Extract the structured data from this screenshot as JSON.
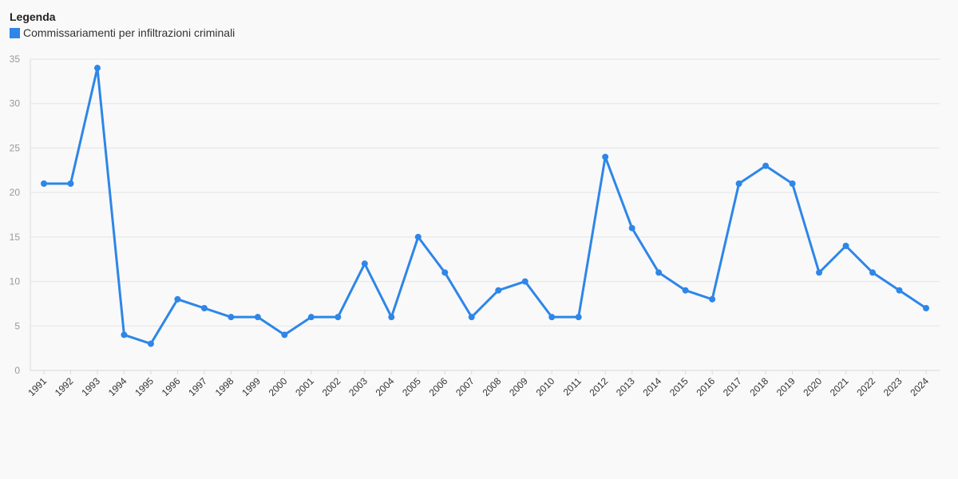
{
  "legend": {
    "title": "Legenda",
    "items": [
      {
        "label": "Commissariamenti per infiltrazioni criminali",
        "color": "#2e86e8"
      }
    ]
  },
  "chart_data": {
    "type": "line",
    "title": "",
    "xlabel": "",
    "ylabel": "",
    "ylim": [
      0,
      35
    ],
    "yticks": [
      0,
      5,
      10,
      15,
      20,
      25,
      30,
      35
    ],
    "grid": true,
    "legend_position": "top-left",
    "x": [
      "1991",
      "1992",
      "1993",
      "1994",
      "1995",
      "1996",
      "1997",
      "1998",
      "1999",
      "2000",
      "2001",
      "2002",
      "2003",
      "2004",
      "2005",
      "2006",
      "2007",
      "2008",
      "2009",
      "2010",
      "2011",
      "2012",
      "2013",
      "2014",
      "2015",
      "2016",
      "2017",
      "2018",
      "2019",
      "2020",
      "2021",
      "2022",
      "2023",
      "2024"
    ],
    "series": [
      {
        "name": "Commissariamenti per infiltrazioni criminali",
        "color": "#2e86e8",
        "values": [
          21,
          21,
          34,
          4,
          3,
          8,
          7,
          6,
          6,
          4,
          6,
          6,
          12,
          6,
          15,
          11,
          6,
          9,
          10,
          6,
          6,
          24,
          16,
          11,
          9,
          8,
          21,
          23,
          21,
          11,
          14,
          11,
          9,
          7
        ]
      }
    ]
  }
}
